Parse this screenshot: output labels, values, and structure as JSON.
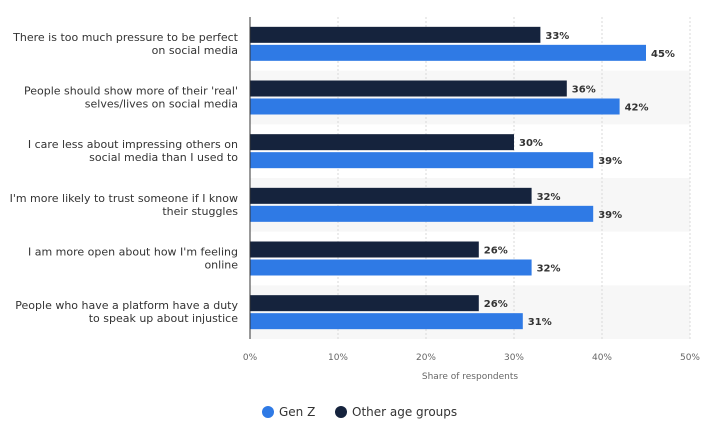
{
  "chart_data": {
    "type": "bar",
    "orientation": "horizontal",
    "categories": [
      [
        "There is too much pressure to be perfect",
        "on social media"
      ],
      [
        "People should show more of their 'real'",
        "selves/lives on social media"
      ],
      [
        "I care less about impressing others on",
        "social media than I used to"
      ],
      [
        "I'm more likely to trust someone if I know",
        "their stuggles"
      ],
      [
        "I am more open about how I'm feeling",
        "online"
      ],
      [
        "People who have a platform have a duty",
        "to speak up about injustice"
      ]
    ],
    "series": [
      {
        "name": "Other age groups",
        "values": [
          33,
          36,
          30,
          32,
          26,
          26
        ],
        "labels": [
          "33%",
          "36%",
          "30%",
          "32%",
          "26%",
          "26%"
        ],
        "color": "#15233d"
      },
      {
        "name": "Gen Z",
        "values": [
          45,
          42,
          39,
          39,
          32,
          31
        ],
        "labels": [
          "45%",
          "42%",
          "39%",
          "39%",
          "32%",
          "31%"
        ],
        "color": "#2f7ae5"
      }
    ],
    "xlim": [
      0,
      50
    ],
    "xticks": [
      0,
      10,
      20,
      30,
      40,
      50
    ],
    "xtick_labels": [
      "0%",
      "10%",
      "20%",
      "30%",
      "40%",
      "50%"
    ],
    "xlabel": "Share of respondents",
    "legend": {
      "placement": "bottom",
      "items": [
        {
          "name": "Gen Z",
          "color": "#2f7ae5"
        },
        {
          "name": "Other age groups",
          "color": "#15233d"
        }
      ]
    },
    "grid": true
  }
}
